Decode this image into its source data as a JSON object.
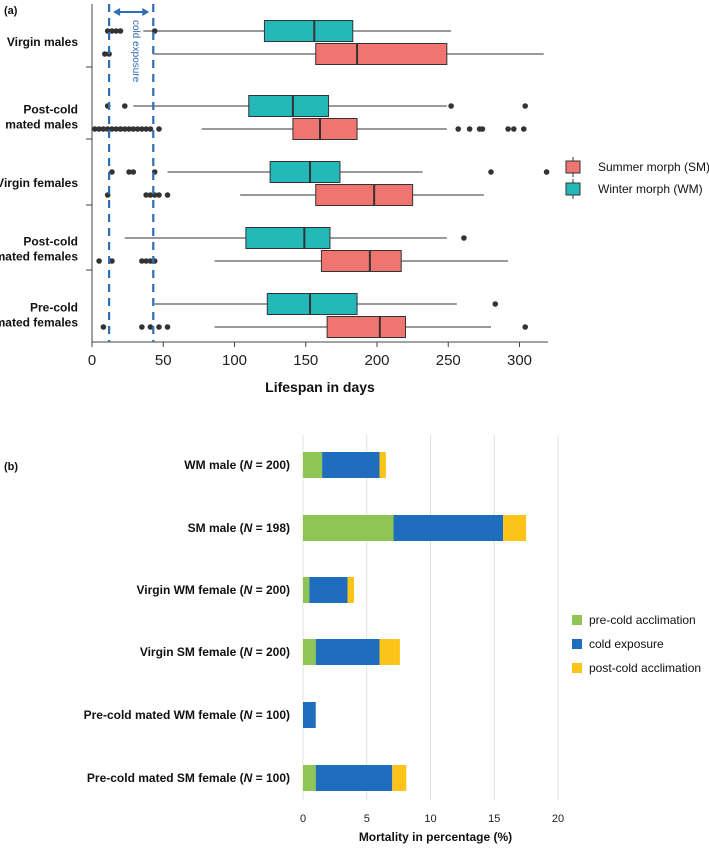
{
  "chart_data": [
    {
      "type": "boxplot",
      "panel_label": "(a)",
      "xlabel": "Lifespan in days",
      "xlim": [
        0,
        320
      ],
      "xticks": [
        "0",
        "50",
        "100",
        "150",
        "200",
        "250",
        "300"
      ],
      "groups": [
        {
          "label_lines": [
            "Virgin males"
          ]
        },
        {
          "label_lines": [
            "Post-cold",
            "mated males"
          ]
        },
        {
          "label_lines": [
            "Virgin females"
          ]
        },
        {
          "label_lines": [
            "Post-cold",
            "mated females"
          ]
        },
        {
          "label_lines": [
            "Pre-cold",
            "mated females"
          ]
        }
      ],
      "series": [
        {
          "name": "Summer morph (SM)",
          "color": "#f07470",
          "boxes": [
            {
              "whisker_low": 43,
              "q1": 157,
              "median": 186,
              "q3": 249,
              "whisker_high": 317,
              "outliers": [
                9,
                12
              ]
            },
            {
              "whisker_low": 77,
              "q1": 141,
              "median": 160,
              "q3": 186,
              "whisker_high": 249,
              "outliers": [
                2,
                5,
                8,
                11,
                14,
                17,
                20,
                23,
                26,
                29,
                32,
                35,
                38,
                41,
                47,
                257,
                265,
                272,
                274,
                292,
                296,
                303
              ]
            },
            {
              "whisker_low": 104,
              "q1": 157,
              "median": 198,
              "q3": 225,
              "whisker_high": 275,
              "outliers": [
                11,
                38,
                41,
                44,
                47,
                53
              ]
            },
            {
              "whisker_low": 86,
              "q1": 161,
              "median": 195,
              "q3": 217,
              "whisker_high": 292,
              "outliers": [
                5,
                14,
                35,
                38,
                41,
                44
              ]
            },
            {
              "whisker_low": 86,
              "q1": 165,
              "median": 202,
              "q3": 220,
              "whisker_high": 280,
              "outliers": [
                8,
                35,
                41,
                47,
                53,
                304
              ]
            }
          ]
        },
        {
          "name": "Winter morph (WM)",
          "color": "#24b8b8",
          "boxes": [
            {
              "whisker_low": 36,
              "q1": 121,
              "median": 156,
              "q3": 183,
              "whisker_high": 252,
              "outliers": [
                11,
                14,
                17,
                20,
                44
              ]
            },
            {
              "whisker_low": 29,
              "q1": 110,
              "median": 141,
              "q3": 166,
              "whisker_high": 249,
              "outliers": [
                11,
                23,
                252,
                304
              ]
            },
            {
              "whisker_low": 53,
              "q1": 125,
              "median": 153,
              "q3": 174,
              "whisker_high": 232,
              "outliers": [
                14,
                26,
                29,
                44,
                280,
                319
              ]
            },
            {
              "whisker_low": 23,
              "q1": 108,
              "median": 149,
              "q3": 167,
              "whisker_high": 249,
              "outliers": [
                261
              ]
            },
            {
              "whisker_low": 44,
              "q1": 123,
              "median": 153,
              "q3": 186,
              "whisker_high": 256,
              "outliers": [
                283
              ]
            }
          ]
        }
      ],
      "vlines": [
        12,
        43
      ],
      "annotation": "cold exposure",
      "legend_position": "right"
    },
    {
      "type": "bar",
      "orientation": "horizontal",
      "stacked": true,
      "panel_label": "(b)",
      "xlabel": "Mortality in percentage (%)",
      "xlim": [
        0,
        20
      ],
      "xticks": [
        "0",
        "5",
        "10",
        "15",
        "20"
      ],
      "categories": [
        {
          "pre": "WM male (",
          "n": "N",
          "post": " = 200)"
        },
        {
          "pre": "SM male (",
          "n": "N",
          "post": " = 198)"
        },
        {
          "pre": "Virgin WM female (",
          "n": "N",
          "post": " = 200)"
        },
        {
          "pre": "Virgin SM female (",
          "n": "N",
          "post": " = 200)"
        },
        {
          "pre": "Pre-cold mated WM female (",
          "n": "N",
          "post": " = 100)"
        },
        {
          "pre": "Pre-cold mated SM female (",
          "n": "N",
          "post": " = 100)"
        }
      ],
      "series": [
        {
          "name": "pre-cold acclimation",
          "color": "#8fc555",
          "values": [
            1.5,
            7.1,
            0.5,
            1.0,
            0.0,
            1.0
          ]
        },
        {
          "name": "cold exposure",
          "color": "#1f6dbd",
          "values": [
            4.5,
            8.6,
            3.0,
            5.0,
            1.0,
            6.0
          ]
        },
        {
          "name": "post-cold acclimation",
          "color": "#fcc418",
          "values": [
            0.5,
            1.8,
            0.5,
            1.6,
            0.0,
            1.1
          ]
        }
      ],
      "legend_position": "right"
    }
  ]
}
